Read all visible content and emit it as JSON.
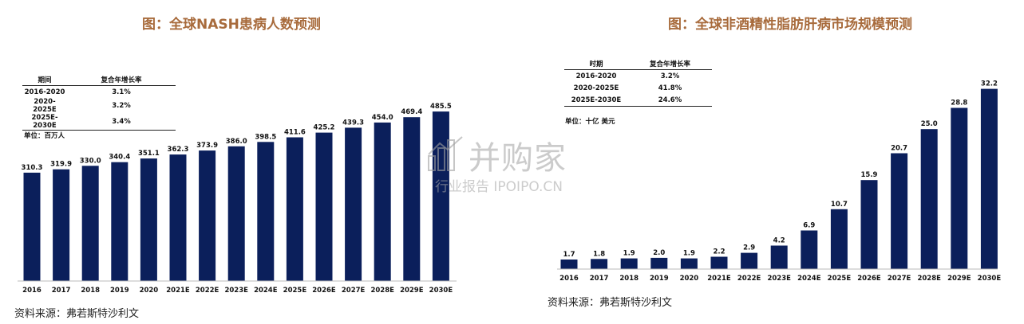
{
  "left": {
    "title": "图：全球NASH患病人数预测",
    "cagr_table": {
      "headers": [
        "期间",
        "复合年增长率"
      ],
      "rows": [
        [
          "2016-2020",
          "3.1%"
        ],
        [
          "2020-2025E",
          "3.2%"
        ],
        [
          "2025E-2030E",
          "3.4%"
        ]
      ]
    },
    "unit": "单位：百万人",
    "source": "资料来源：弗若斯特沙利文"
  },
  "right": {
    "title": "图：全球非酒精性脂肪肝病市场规模预测",
    "cagr_table": {
      "headers": [
        "时期",
        "复合年增长率"
      ],
      "rows": [
        [
          "2016-2020",
          "3.2%"
        ],
        [
          "2020-2025E",
          "41.8%"
        ],
        [
          "2025E-2030E",
          "24.6%"
        ]
      ]
    },
    "unit": "单位：十亿 美元",
    "source": "资料来源：弗若斯特沙利文"
  },
  "watermark": {
    "name": "并购家",
    "subtitle": "行业报告 IPOIPO.CN"
  },
  "chart_data": [
    {
      "type": "bar",
      "title": "图：全球NASH患病人数预测",
      "ylabel": "单位：百万人",
      "xlabel": "",
      "categories": [
        "2016",
        "2017",
        "2018",
        "2019",
        "2020",
        "2021E",
        "2022E",
        "2023E",
        "2024E",
        "2025E",
        "2026E",
        "2027E",
        "2028E",
        "2029E",
        "2030E"
      ],
      "values": [
        310.3,
        319.9,
        330.0,
        340.4,
        351.1,
        362.3,
        373.9,
        386.0,
        398.5,
        411.6,
        425.2,
        439.3,
        454.0,
        469.4,
        485.5
      ],
      "labels": [
        "310.3",
        "319.9",
        "330.0",
        "340.4",
        "351.1",
        "362.3",
        "373.9",
        "386.0",
        "398.5",
        "411.6",
        "425.2",
        "439.3",
        "454.0",
        "469.4",
        "485.5"
      ],
      "ylim": [
        0,
        520
      ],
      "grid": false,
      "bar_color": "#0b1f5b"
    },
    {
      "type": "bar",
      "title": "图：全球非酒精性脂肪肝病市场规模预测",
      "ylabel": "单位：十亿 美元",
      "xlabel": "",
      "categories": [
        "2016",
        "2017",
        "2018",
        "2019",
        "2020",
        "2021E",
        "2022E",
        "2023E",
        "2024E",
        "2025E",
        "2026E",
        "2027E",
        "2028E",
        "2029E",
        "2030E"
      ],
      "values": [
        1.7,
        1.8,
        1.9,
        2.0,
        1.9,
        2.2,
        2.9,
        4.2,
        6.9,
        10.7,
        15.9,
        20.7,
        25.0,
        28.8,
        32.2
      ],
      "labels": [
        "1.7",
        "1.8",
        "1.9",
        "2.0",
        "1.9",
        "2.2",
        "2.9",
        "4.2",
        "6.9",
        "10.7",
        "15.9",
        "20.7",
        "25.0",
        "28.8",
        "32.2"
      ],
      "ylim": [
        0,
        33
      ],
      "grid": false,
      "bar_color": "#0b1f5b"
    }
  ]
}
